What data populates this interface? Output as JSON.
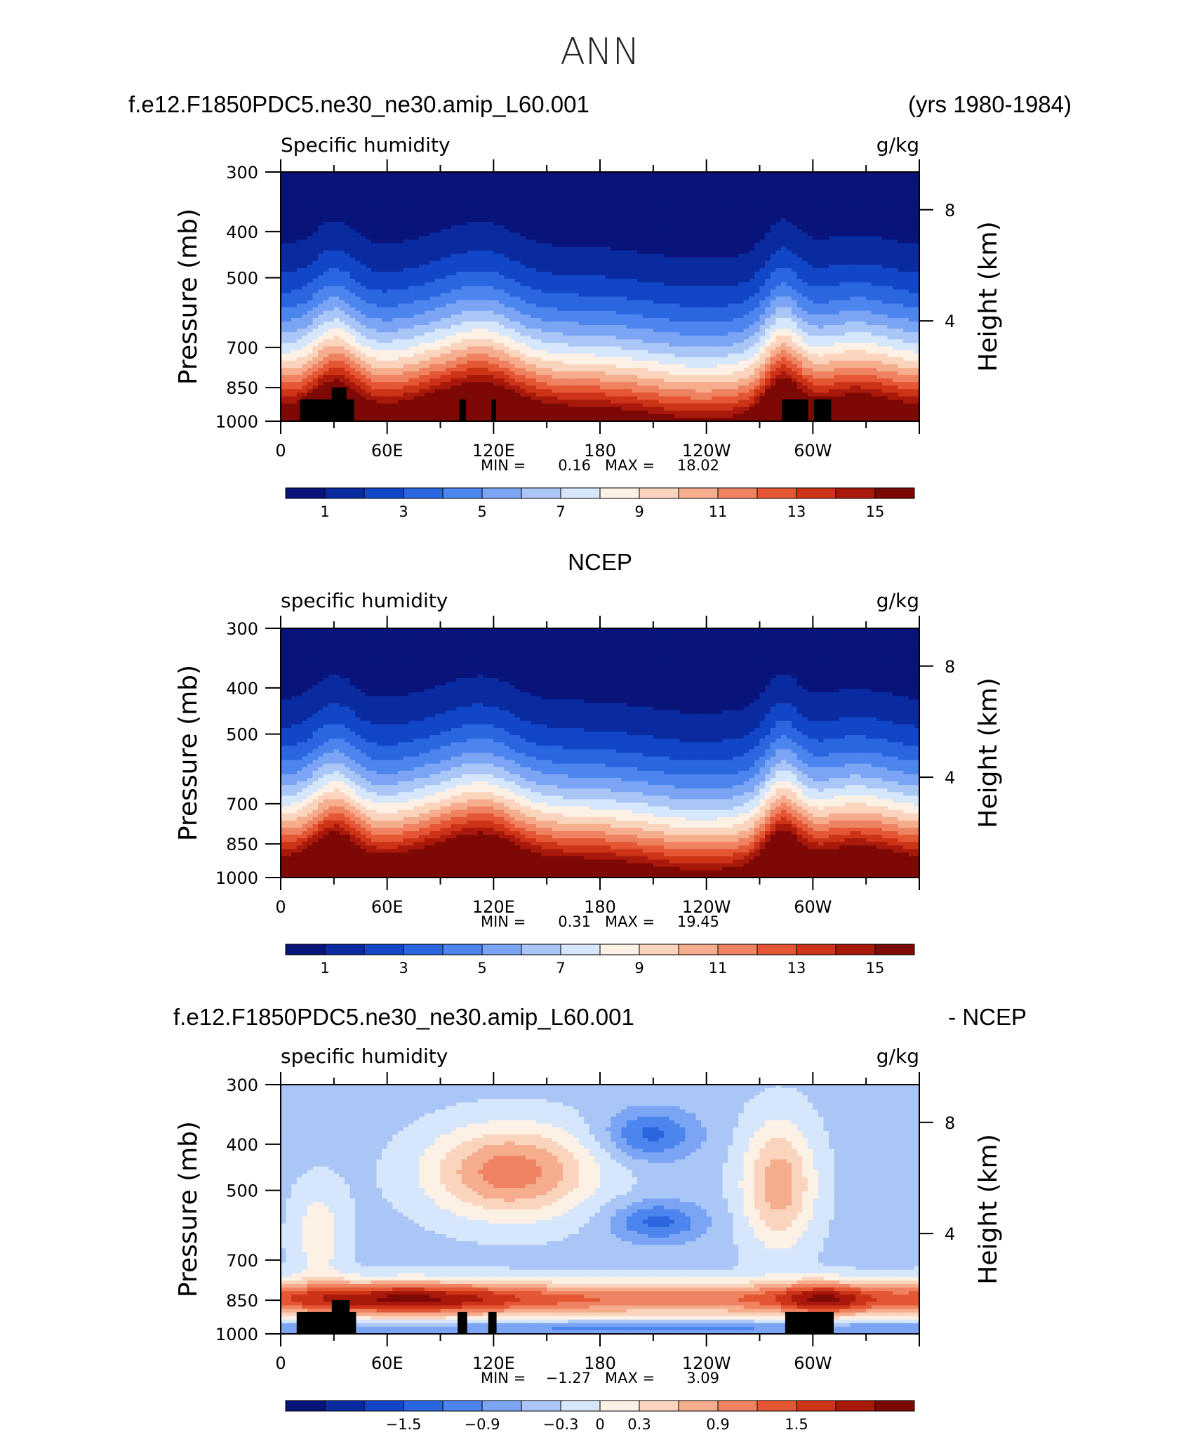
{
  "page_title": "ANN",
  "chart_data": [
    {
      "type": "heatmap",
      "header_left": "f.e12.F1850PDC5.ne30_ne30.amip_L60.001",
      "header_right": "(yrs 1980-1984)",
      "field": "Specific humidity",
      "units": "g/kg",
      "ylabel": "Pressure (mb)",
      "y2label": "Height (km)",
      "pressure_ticks": [
        "300",
        "400",
        "500",
        "700",
        "850",
        "1000"
      ],
      "height_ticks": [
        "8",
        "4"
      ],
      "lon_ticks": [
        "0",
        "60E",
        "120E",
        "180",
        "120W",
        "60W"
      ],
      "min_label": "MIN =",
      "min_value": "0.16",
      "max_label": "MAX =",
      "max_value": "18.02",
      "colorbar_labels": [
        "1",
        "3",
        "5",
        "7",
        "9",
        "11",
        "13",
        "15"
      ],
      "colorbar_levels": [
        0,
        1,
        2,
        3,
        4,
        5,
        6,
        7,
        8,
        9,
        10,
        11,
        12,
        13,
        14,
        15,
        16
      ],
      "mode": "model"
    },
    {
      "type": "heatmap",
      "header_center": "NCEP",
      "field": "specific humidity",
      "units": "g/kg",
      "ylabel": "Pressure (mb)",
      "y2label": "Height (km)",
      "pressure_ticks": [
        "300",
        "400",
        "500",
        "700",
        "850",
        "1000"
      ],
      "height_ticks": [
        "8",
        "4"
      ],
      "lon_ticks": [
        "0",
        "60E",
        "120E",
        "180",
        "120W",
        "60W"
      ],
      "min_label": "MIN =",
      "min_value": "0.31",
      "max_label": "MAX =",
      "max_value": "19.45",
      "colorbar_labels": [
        "1",
        "3",
        "5",
        "7",
        "9",
        "11",
        "13",
        "15"
      ],
      "colorbar_levels": [
        0,
        1,
        2,
        3,
        4,
        5,
        6,
        7,
        8,
        9,
        10,
        11,
        12,
        13,
        14,
        15,
        16
      ],
      "mode": "obs"
    },
    {
      "type": "heatmap",
      "header_left": "f.e12.F1850PDC5.ne30_ne30.amip_L60.001",
      "header_right": "- NCEP",
      "field": "specific humidity",
      "units": "g/kg",
      "ylabel": "Pressure (mb)",
      "y2label": "Height (km)",
      "pressure_ticks": [
        "300",
        "400",
        "500",
        "700",
        "850",
        "1000"
      ],
      "height_ticks": [
        "8",
        "4"
      ],
      "lon_ticks": [
        "0",
        "60E",
        "120E",
        "180",
        "120W",
        "60W"
      ],
      "min_label": "MIN =",
      "min_value": "−1.27",
      "max_label": "MAX =",
      "max_value": "3.09",
      "colorbar_labels": [
        "−1.5",
        "−0.9",
        "−0.3",
        "0",
        "0.3",
        "0.9",
        "1.5"
      ],
      "colorbar_levels": [
        -2.4,
        -2.1,
        -1.8,
        -1.5,
        -1.2,
        -0.9,
        -0.6,
        -0.3,
        0,
        0.3,
        0.6,
        0.9,
        1.2,
        1.5,
        1.8,
        2.1,
        2.4
      ],
      "mode": "diff"
    }
  ],
  "colors": {
    "palette": [
      "#08147a",
      "#0a2aa0",
      "#1246c8",
      "#2a66e0",
      "#4d85ee",
      "#7ba5f4",
      "#a9c6f7",
      "#d6e6fb",
      "#fdf1e6",
      "#fbd4bd",
      "#f6ad8e",
      "#ef8260",
      "#e45634",
      "#cc3317",
      "#a9190b",
      "#7c0905"
    ],
    "topography": "#000000"
  }
}
